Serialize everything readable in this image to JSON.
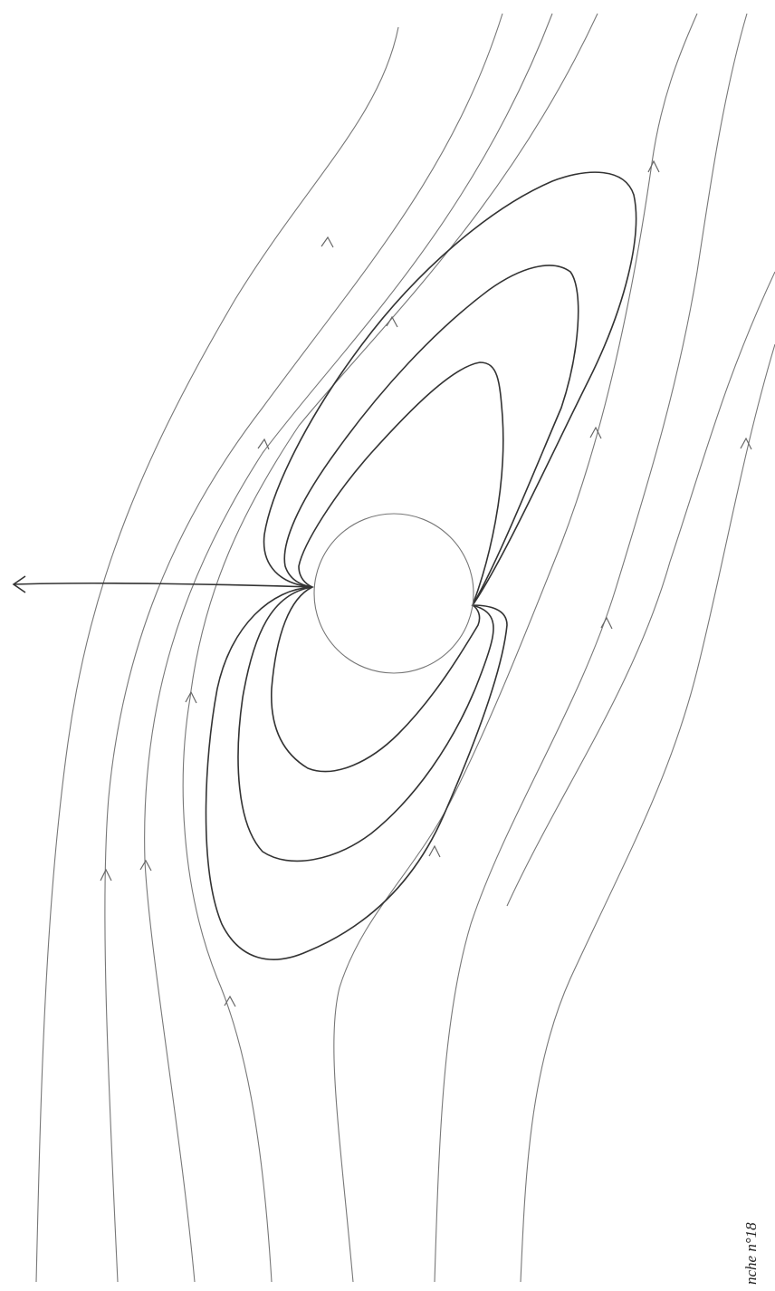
{
  "caption": "nche n°18"
}
